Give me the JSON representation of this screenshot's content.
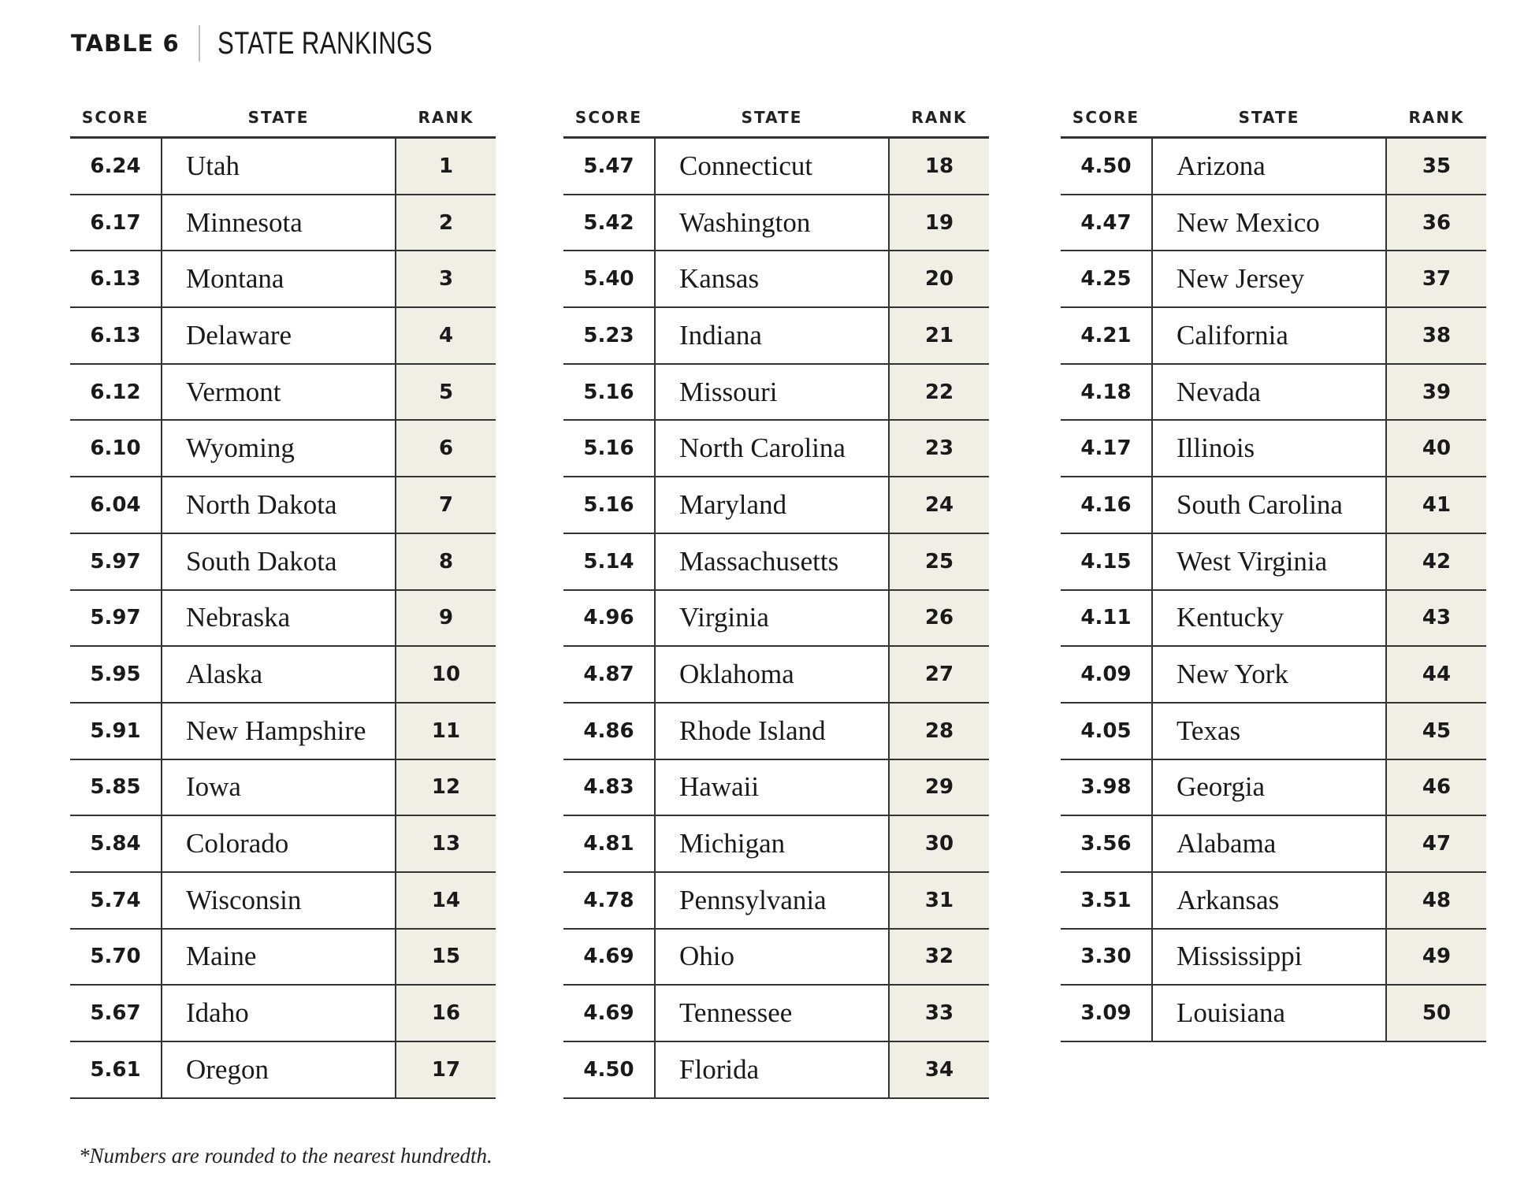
{
  "title": {
    "label": "TABLE 6",
    "name": "STATE RANKINGS"
  },
  "columns": {
    "score": "SCORE",
    "state": "STATE",
    "rank": "RANK"
  },
  "blocks": [
    [
      {
        "score": "6.24",
        "state": "Utah",
        "rank": "1"
      },
      {
        "score": "6.17",
        "state": "Minnesota",
        "rank": "2"
      },
      {
        "score": "6.13",
        "state": "Montana",
        "rank": "3"
      },
      {
        "score": "6.13",
        "state": "Delaware",
        "rank": "4"
      },
      {
        "score": "6.12",
        "state": "Vermont",
        "rank": "5"
      },
      {
        "score": "6.10",
        "state": "Wyoming",
        "rank": "6"
      },
      {
        "score": "6.04",
        "state": "North Dakota",
        "rank": "7"
      },
      {
        "score": "5.97",
        "state": "South Dakota",
        "rank": "8"
      },
      {
        "score": "5.97",
        "state": "Nebraska",
        "rank": "9"
      },
      {
        "score": "5.95",
        "state": "Alaska",
        "rank": "10"
      },
      {
        "score": "5.91",
        "state": "New Hampshire",
        "rank": "11"
      },
      {
        "score": "5.85",
        "state": "Iowa",
        "rank": "12"
      },
      {
        "score": "5.84",
        "state": "Colorado",
        "rank": "13"
      },
      {
        "score": "5.74",
        "state": "Wisconsin",
        "rank": "14"
      },
      {
        "score": "5.70",
        "state": "Maine",
        "rank": "15"
      },
      {
        "score": "5.67",
        "state": "Idaho",
        "rank": "16"
      },
      {
        "score": "5.61",
        "state": "Oregon",
        "rank": "17"
      }
    ],
    [
      {
        "score": "5.47",
        "state": "Connecticut",
        "rank": "18"
      },
      {
        "score": "5.42",
        "state": "Washington",
        "rank": "19"
      },
      {
        "score": "5.40",
        "state": "Kansas",
        "rank": "20"
      },
      {
        "score": "5.23",
        "state": "Indiana",
        "rank": "21"
      },
      {
        "score": "5.16",
        "state": "Missouri",
        "rank": "22"
      },
      {
        "score": "5.16",
        "state": "North Carolina",
        "rank": "23"
      },
      {
        "score": "5.16",
        "state": "Maryland",
        "rank": "24"
      },
      {
        "score": "5.14",
        "state": "Massachusetts",
        "rank": "25"
      },
      {
        "score": "4.96",
        "state": "Virginia",
        "rank": "26"
      },
      {
        "score": "4.87",
        "state": "Oklahoma",
        "rank": "27"
      },
      {
        "score": "4.86",
        "state": "Rhode Island",
        "rank": "28"
      },
      {
        "score": "4.83",
        "state": "Hawaii",
        "rank": "29"
      },
      {
        "score": "4.81",
        "state": "Michigan",
        "rank": "30"
      },
      {
        "score": "4.78",
        "state": "Pennsylvania",
        "rank": "31"
      },
      {
        "score": "4.69",
        "state": "Ohio",
        "rank": "32"
      },
      {
        "score": "4.69",
        "state": "Tennessee",
        "rank": "33"
      },
      {
        "score": "4.50",
        "state": "Florida",
        "rank": "34"
      }
    ],
    [
      {
        "score": "4.50",
        "state": "Arizona",
        "rank": "35"
      },
      {
        "score": "4.47",
        "state": "New Mexico",
        "rank": "36"
      },
      {
        "score": "4.25",
        "state": "New Jersey",
        "rank": "37"
      },
      {
        "score": "4.21",
        "state": "California",
        "rank": "38"
      },
      {
        "score": "4.18",
        "state": "Nevada",
        "rank": "39"
      },
      {
        "score": "4.17",
        "state": "Illinois",
        "rank": "40"
      },
      {
        "score": "4.16",
        "state": "South Carolina",
        "rank": "41"
      },
      {
        "score": "4.15",
        "state": "West Virginia",
        "rank": "42"
      },
      {
        "score": "4.11",
        "state": "Kentucky",
        "rank": "43"
      },
      {
        "score": "4.09",
        "state": "New York",
        "rank": "44"
      },
      {
        "score": "4.05",
        "state": "Texas",
        "rank": "45"
      },
      {
        "score": "3.98",
        "state": "Georgia",
        "rank": "46"
      },
      {
        "score": "3.56",
        "state": "Alabama",
        "rank": "47"
      },
      {
        "score": "3.51",
        "state": "Arkansas",
        "rank": "48"
      },
      {
        "score": "3.30",
        "state": "Mississippi",
        "rank": "49"
      },
      {
        "score": "3.09",
        "state": "Louisiana",
        "rank": "50"
      }
    ]
  ],
  "footnote": "*Numbers are rounded to the nearest hundredth."
}
